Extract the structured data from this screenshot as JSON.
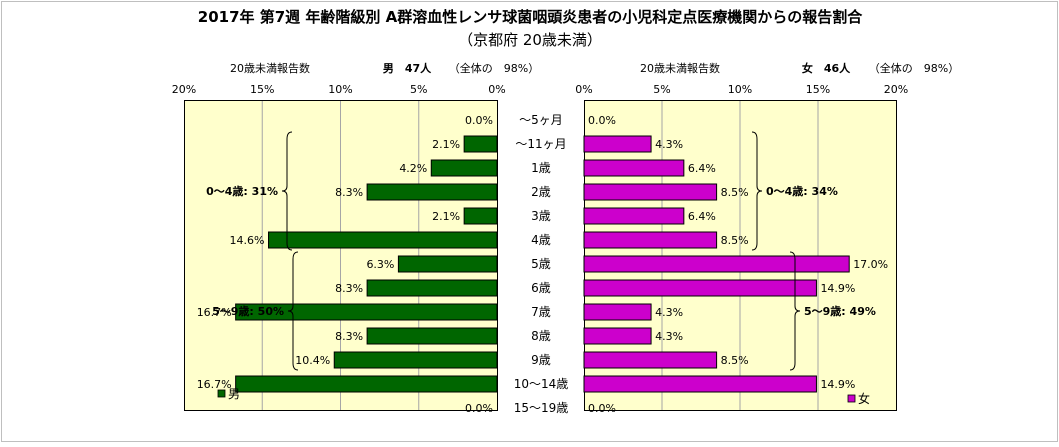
{
  "chart_data": {
    "type": "bar",
    "orientation": "horizontal",
    "layout": "population-pyramid",
    "title": "2017年 第7週 年齢階級別 A群溶血性レンサ球菌咽頭炎患者の小児科定点医療機関からの報告割合",
    "subtitle": "（京都府 20歳未満）",
    "categories": [
      "～5ヶ月",
      "～11ヶ月",
      "1歳",
      "2歳",
      "3歳",
      "4歳",
      "5歳",
      "6歳",
      "7歳",
      "8歳",
      "9歳",
      "10～14歳",
      "15～19歳"
    ],
    "xlim": [
      0,
      20
    ],
    "x_ticks": [
      "0%",
      "5%",
      "10%",
      "15%",
      "20%"
    ],
    "x_ticks_left": [
      "20%",
      "15%",
      "10%",
      "5%",
      "0%"
    ],
    "grid": "vertical",
    "series": [
      {
        "name": "男",
        "side": "left",
        "color": "#006600",
        "axis_caption": "20歳未満報告数",
        "total_label": "男　47人",
        "total_note": "（全体の　98%）",
        "values": [
          0.0,
          2.1,
          4.2,
          8.3,
          2.1,
          14.6,
          6.3,
          8.3,
          16.7,
          8.3,
          10.4,
          16.7,
          0.0
        ],
        "data_labels": [
          "0.0%",
          "2.1%",
          "4.2%",
          "8.3%",
          "2.1%",
          "14.6%",
          "6.3%",
          "8.3%",
          "16.7%",
          "8.3%",
          "10.4%",
          "16.7%",
          "0.0%"
        ],
        "legend": "男",
        "groups": [
          {
            "label": "0～4歳: 31%",
            "from": 1,
            "to": 5
          },
          {
            "label": "5～9歳: 50%",
            "from": 6,
            "to": 10
          }
        ]
      },
      {
        "name": "女",
        "side": "right",
        "color": "#cc00cc",
        "axis_caption": "20歳未満報告数",
        "total_label": "女　46人",
        "total_note": "（全体の　98%）",
        "values": [
          0.0,
          4.3,
          6.4,
          8.5,
          6.4,
          8.5,
          17.0,
          14.9,
          4.3,
          4.3,
          8.5,
          14.9,
          0.0
        ],
        "data_labels": [
          "0.0%",
          "4.3%",
          "6.4%",
          "8.5%",
          "6.4%",
          "8.5%",
          "17.0%",
          "14.9%",
          "4.3%",
          "4.3%",
          "8.5%",
          "14.9%",
          "0.0%"
        ],
        "legend": "女",
        "groups": [
          {
            "label": "0～4歳: 34%",
            "from": 1,
            "to": 5
          },
          {
            "label": "5～9歳: 49%",
            "from": 6,
            "to": 10
          }
        ]
      }
    ],
    "colors": {
      "male_bar": "#006600",
      "female_bar": "#cc00cc",
      "plot_background": "#ffffcc",
      "grid": "#a6a6a6"
    }
  }
}
